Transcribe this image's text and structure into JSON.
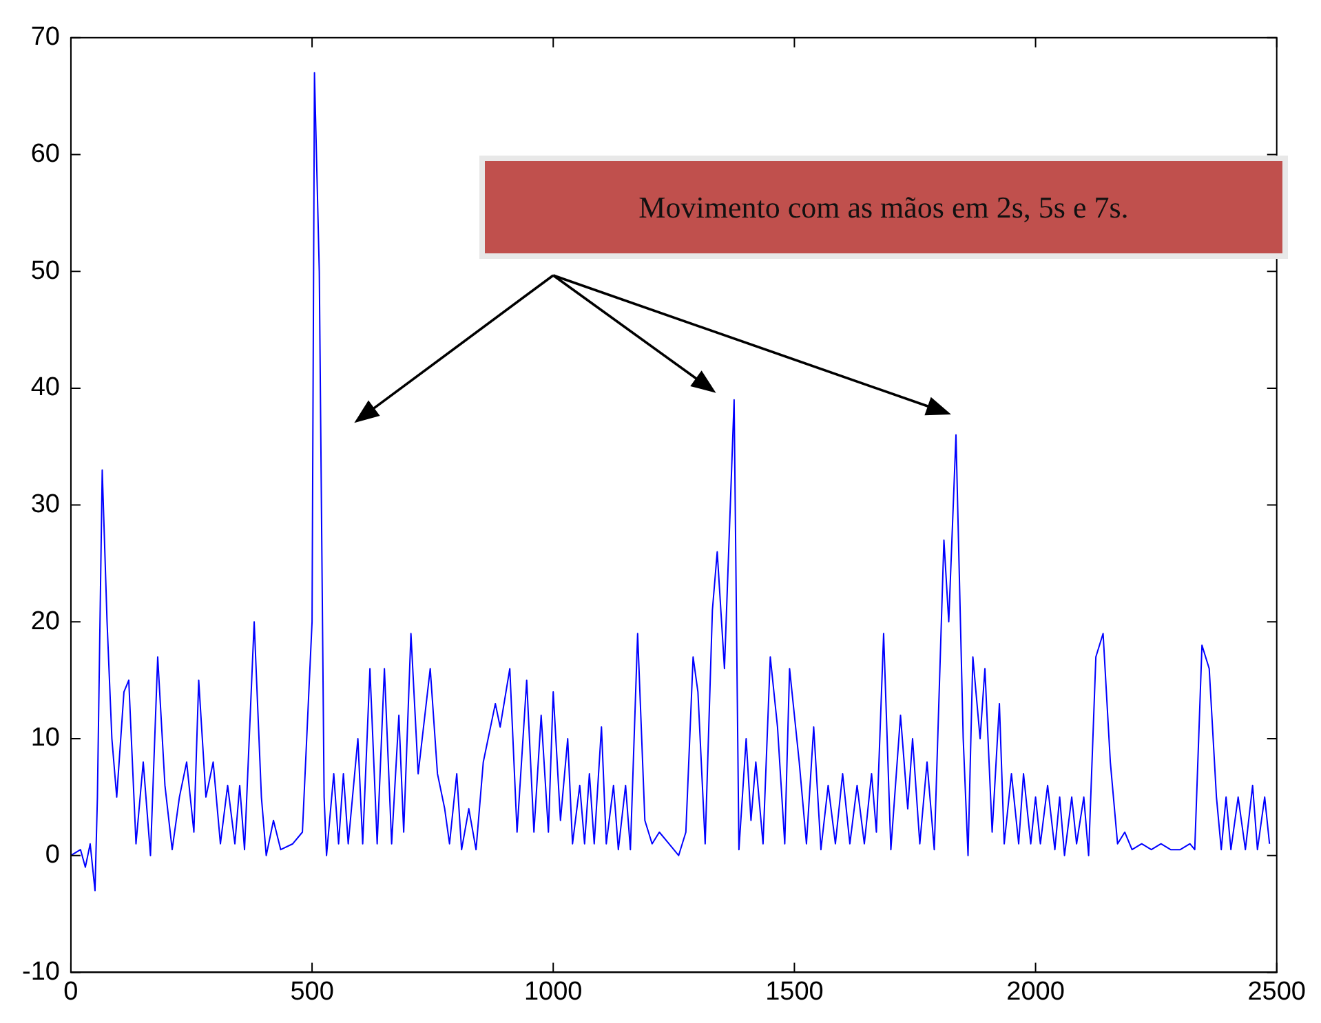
{
  "chart_data": {
    "type": "line",
    "annotations": [
      "Movimento com as mãos em 2s, 5s e 7s."
    ],
    "xlim": [
      0,
      2500
    ],
    "xticks": [
      0,
      500,
      1000,
      1500,
      2000,
      2500
    ],
    "ylim": [
      -10,
      70
    ],
    "yticks": [
      -10,
      0,
      10,
      20,
      30,
      40,
      50,
      60,
      70
    ],
    "grid": false,
    "legend": false,
    "marker": "none",
    "line_style": "solid",
    "series": [
      {
        "color": "#0000ff",
        "x": [
          0,
          20,
          30,
          40,
          50,
          55,
          65,
          75,
          85,
          95,
          110,
          120,
          135,
          150,
          165,
          180,
          195,
          210,
          225,
          240,
          255,
          265,
          280,
          295,
          310,
          325,
          340,
          350,
          360,
          380,
          395,
          405,
          420,
          435,
          460,
          480,
          500,
          505,
          515,
          525,
          530,
          545,
          555,
          565,
          575,
          595,
          605,
          620,
          635,
          650,
          665,
          680,
          690,
          705,
          720,
          745,
          760,
          775,
          785,
          800,
          810,
          825,
          840,
          855,
          880,
          890,
          910,
          925,
          945,
          960,
          975,
          990,
          1000,
          1015,
          1030,
          1040,
          1055,
          1065,
          1075,
          1085,
          1100,
          1110,
          1125,
          1135,
          1150,
          1160,
          1175,
          1190,
          1205,
          1220,
          1240,
          1260,
          1275,
          1290,
          1300,
          1315,
          1330,
          1340,
          1355,
          1375,
          1385,
          1400,
          1410,
          1420,
          1435,
          1450,
          1465,
          1480,
          1490,
          1510,
          1525,
          1540,
          1555,
          1570,
          1585,
          1600,
          1615,
          1630,
          1645,
          1660,
          1670,
          1685,
          1700,
          1720,
          1735,
          1745,
          1760,
          1775,
          1790,
          1810,
          1820,
          1835,
          1850,
          1860,
          1870,
          1885,
          1895,
          1910,
          1925,
          1935,
          1950,
          1965,
          1975,
          1990,
          2000,
          2010,
          2025,
          2040,
          2050,
          2060,
          2075,
          2085,
          2100,
          2110,
          2125,
          2140,
          2155,
          2170,
          2185,
          2200,
          2220,
          2240,
          2260,
          2280,
          2300,
          2320,
          2330,
          2345,
          2360,
          2375,
          2385,
          2395,
          2405,
          2420,
          2435,
          2450,
          2460,
          2475,
          2485
        ],
        "values": [
          0,
          0.5,
          -1,
          1,
          -3,
          5,
          33,
          20,
          10,
          5,
          14,
          15,
          1,
          8,
          0,
          17,
          6,
          0.5,
          5,
          8,
          2,
          15,
          5,
          8,
          1,
          6,
          1,
          6,
          0.5,
          20,
          5,
          0,
          3,
          0.5,
          1,
          2,
          20,
          67,
          50,
          5,
          0,
          7,
          1,
          7,
          1,
          10,
          1,
          16,
          1,
          16,
          1,
          12,
          2,
          19,
          7,
          16,
          7,
          4,
          1,
          7,
          0.5,
          4,
          0.5,
          8,
          13,
          11,
          16,
          2,
          15,
          2,
          12,
          2,
          14,
          3,
          10,
          1,
          6,
          1,
          7,
          1,
          11,
          1,
          6,
          0.5,
          6,
          0.5,
          19,
          3,
          1,
          2,
          1,
          0,
          2,
          17,
          14,
          1,
          21,
          26,
          16,
          39,
          0.5,
          10,
          3,
          8,
          1,
          17,
          11,
          1,
          16,
          8,
          1,
          11,
          0.5,
          6,
          1,
          7,
          1,
          6,
          1,
          7,
          2,
          19,
          0.5,
          12,
          4,
          10,
          1,
          8,
          0.5,
          27,
          20,
          36,
          10,
          0,
          17,
          10,
          16,
          2,
          13,
          1,
          7,
          1,
          7,
          1,
          5,
          1,
          6,
          0.5,
          5,
          0,
          5,
          1,
          5,
          0,
          17,
          19,
          8,
          1,
          2,
          0.5,
          1,
          0.5,
          1,
          0.5,
          0.5,
          1,
          0.5,
          18,
          16,
          5,
          0.5,
          5,
          0.5,
          5,
          0.5,
          6,
          0.5,
          5,
          1
        ]
      }
    ]
  }
}
